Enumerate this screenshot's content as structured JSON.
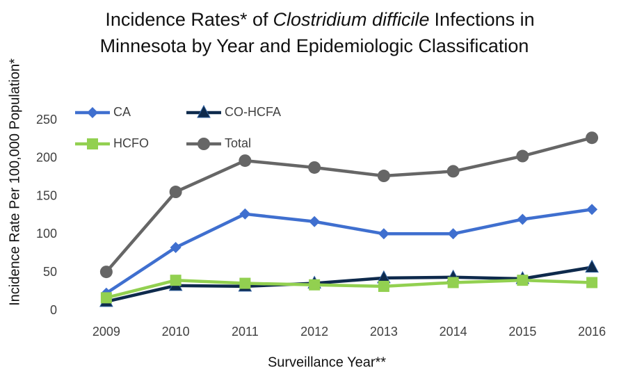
{
  "chart_data": {
    "type": "line",
    "title": {
      "line1": [
        "Incidence Rates* of",
        "Clostridium difficile",
        "Infections in"
      ],
      "line2": "Minnesota by Year and Epidemiologic Classification"
    },
    "x_label": "Surveillance Year**",
    "y_label": "Incidence Rate Per 100,000 Population*",
    "categories": [
      "2009",
      "2010",
      "2011",
      "2012",
      "2013",
      "2014",
      "2015",
      "2016"
    ],
    "series": [
      {
        "name": "CA",
        "color": "#3f6fcf",
        "marker": "diamond",
        "values": [
          23,
          83,
          127,
          117,
          101,
          101,
          120,
          133
        ]
      },
      {
        "name": "CO-HCFA",
        "color": "#0e2a4c",
        "marker": "triangle",
        "values": [
          12,
          33,
          32,
          36,
          43,
          44,
          42,
          57
        ]
      },
      {
        "name": "HCFO",
        "color": "#92d050",
        "marker": "square",
        "values": [
          17,
          40,
          36,
          34,
          32,
          37,
          40,
          37
        ]
      },
      {
        "name": "Total",
        "color": "#666666",
        "marker": "circle",
        "values": [
          51,
          156,
          197,
          188,
          177,
          183,
          203,
          227
        ]
      }
    ],
    "ylim": [
      0,
      250
    ],
    "yticks": [
      0,
      50,
      100,
      150,
      200,
      250
    ],
    "grid": false
  }
}
